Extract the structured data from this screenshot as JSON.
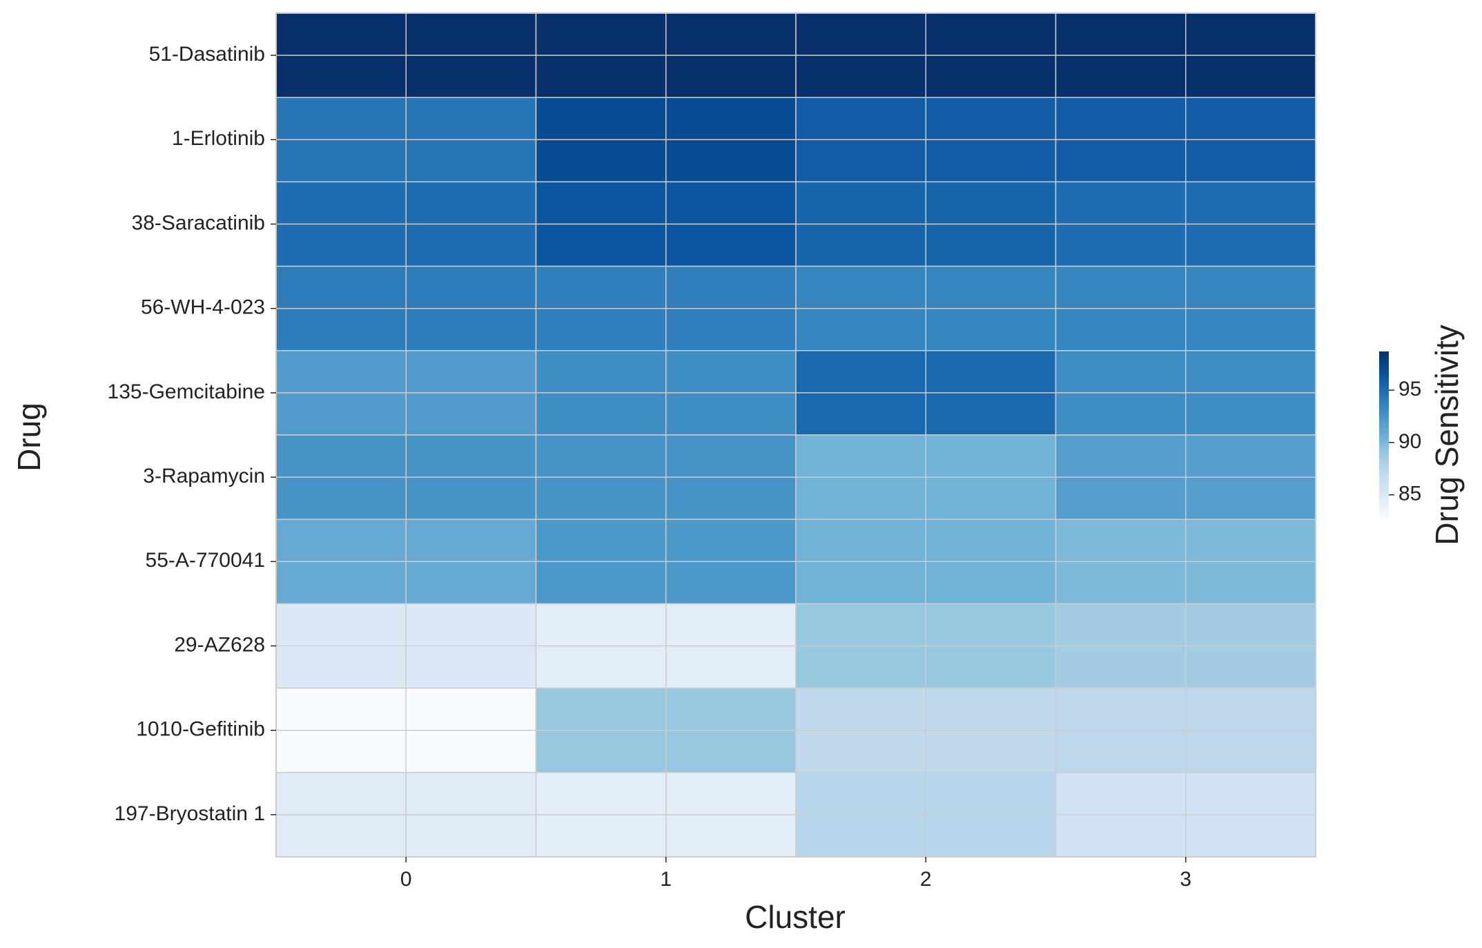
{
  "chart_data": {
    "type": "heatmap",
    "x_label": "Cluster",
    "y_label": "Drug",
    "colorbar_label": "Drug Sensitivity",
    "x_categories": [
      "0",
      "1",
      "2",
      "3"
    ],
    "y_categories": [
      "51-Dasatinib",
      "1-Erlotinib",
      "38-Saracatinib",
      "56-WH-4-023",
      "135-Gemcitabine",
      "3-Rapamycin",
      "55-A-770041",
      "29-AZ628",
      "1010-Gefitinib",
      "197-Bryostatin 1"
    ],
    "values": [
      [
        98.7,
        98.7,
        98.7,
        98.7
      ],
      [
        94.5,
        97.0,
        96.0,
        96.0
      ],
      [
        95.0,
        96.5,
        95.5,
        95.0
      ],
      [
        94.0,
        93.8,
        93.5,
        93.5
      ],
      [
        92.0,
        93.0,
        95.3,
        93.0
      ],
      [
        92.5,
        92.5,
        90.5,
        91.8
      ],
      [
        91.0,
        92.3,
        90.5,
        90.0
      ],
      [
        85.0,
        84.5,
        89.0,
        88.5
      ],
      [
        82.8,
        89.0,
        87.0,
        87.2
      ],
      [
        84.7,
        84.5,
        87.5,
        86.0
      ]
    ],
    "colormap": "Blues",
    "colorbar_lim": [
      82.8,
      98.7
    ],
    "colorbar_ticks": [
      85,
      90,
      95
    ],
    "grid": true
  }
}
